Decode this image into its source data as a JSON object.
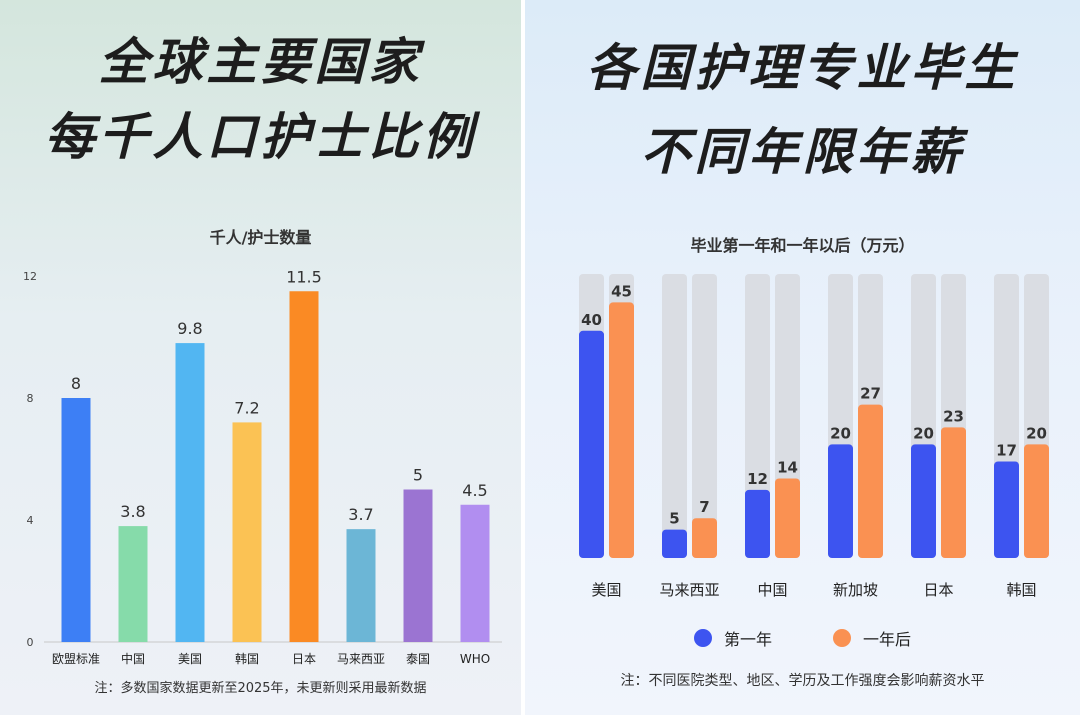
{
  "left": {
    "title_line1": "全球主要国家",
    "title_line2": "每千人口护士比例",
    "footnote": "注：多数国家数据更新至2025年，未更新则采用最新数据"
  },
  "right": {
    "title_line1": "各国护理专业毕生",
    "title_line2": "不同年限年薪",
    "footnote": "注：不同医院类型、地区、学历及工作强度会影响薪资水平",
    "legend": [
      {
        "label": "第一年",
        "color": "#3d54f0"
      },
      {
        "label": "一年后",
        "color": "#fa9152"
      }
    ]
  },
  "chart_data": [
    {
      "type": "bar",
      "title": "千人/护士数量",
      "categories": [
        "欧盟标准",
        "中国",
        "美国",
        "韩国",
        "日本",
        "马来西亚",
        "泰国",
        "WHO"
      ],
      "values": [
        8,
        3.8,
        9.8,
        7.2,
        11.5,
        3.7,
        5,
        4.5
      ],
      "value_labels": [
        "8",
        "3.8",
        "9.8",
        "7.2",
        "11.5",
        "3.7",
        "5",
        "4.5"
      ],
      "colors": [
        "#3d7ff5",
        "#86dbaa",
        "#52b6f2",
        "#fbc254",
        "#fa8a24",
        "#6cb6d6",
        "#9b74d2",
        "#b18ef0"
      ],
      "yticks": [
        0,
        4,
        8,
        12
      ],
      "ylim": [
        0,
        12
      ],
      "xlabel": "",
      "ylabel": ""
    },
    {
      "type": "bar",
      "title": "毕业第一年和一年以后（万元）",
      "categories": [
        "美国",
        "马来西亚",
        "中国",
        "新加坡",
        "日本",
        "韩国"
      ],
      "series": [
        {
          "name": "第一年",
          "values": [
            40,
            5,
            12,
            20,
            20,
            17
          ],
          "color": "#3d54f0"
        },
        {
          "name": "一年后",
          "values": [
            45,
            7,
            14,
            27,
            23,
            20
          ],
          "color": "#fa9152"
        }
      ],
      "ylim": [
        0,
        50
      ],
      "track_color": "#dadde3"
    }
  ]
}
